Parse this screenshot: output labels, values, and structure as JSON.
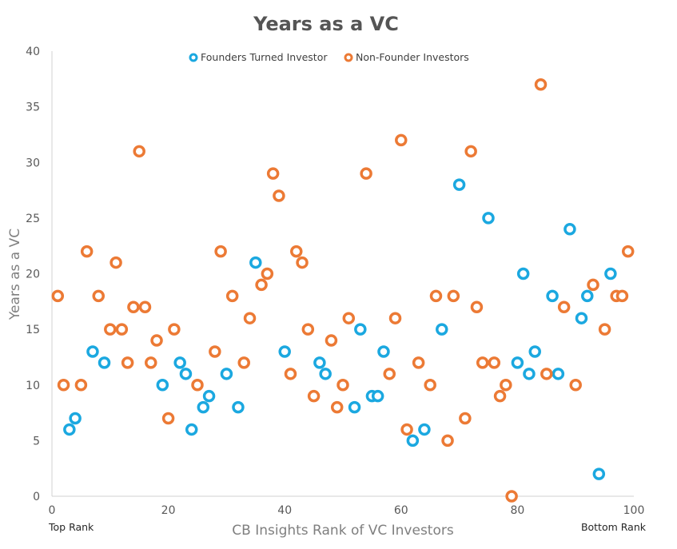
{
  "chart_data": {
    "type": "scatter",
    "title": "Years as a VC",
    "xlabel": "CB Insights Rank of VC Investors",
    "ylabel": "Years as a VC",
    "xlim": [
      0,
      100
    ],
    "ylim": [
      0,
      40
    ],
    "xticks": [
      0,
      20,
      40,
      60,
      80,
      100
    ],
    "yticks": [
      0,
      5,
      10,
      15,
      20,
      25,
      30,
      35,
      40
    ],
    "grid": false,
    "legend_position": "top",
    "x_start_note": "Top Rank",
    "x_end_note": "Bottom Rank",
    "series": [
      {
        "name": "Founders Turned Investor",
        "color": "#1ba8e0",
        "points": [
          [
            3,
            6
          ],
          [
            4,
            7
          ],
          [
            7,
            13
          ],
          [
            9,
            12
          ],
          [
            19,
            10
          ],
          [
            22,
            12
          ],
          [
            23,
            11
          ],
          [
            24,
            6
          ],
          [
            26,
            8
          ],
          [
            27,
            9
          ],
          [
            30,
            11
          ],
          [
            32,
            8
          ],
          [
            35,
            21
          ],
          [
            40,
            13
          ],
          [
            46,
            12
          ],
          [
            47,
            11
          ],
          [
            52,
            8
          ],
          [
            53,
            15
          ],
          [
            55,
            9
          ],
          [
            56,
            9
          ],
          [
            57,
            13
          ],
          [
            62,
            5
          ],
          [
            64,
            6
          ],
          [
            67,
            15
          ],
          [
            70,
            28
          ],
          [
            75,
            25
          ],
          [
            80,
            12
          ],
          [
            81,
            20
          ],
          [
            82,
            11
          ],
          [
            83,
            13
          ],
          [
            86,
            18
          ],
          [
            87,
            11
          ],
          [
            89,
            24
          ],
          [
            91,
            16
          ],
          [
            92,
            18
          ],
          [
            94,
            2
          ],
          [
            96,
            20
          ]
        ]
      },
      {
        "name": "Non-Founder Investors",
        "color": "#ec7a35",
        "points": [
          [
            1,
            18
          ],
          [
            2,
            10
          ],
          [
            5,
            10
          ],
          [
            6,
            22
          ],
          [
            8,
            18
          ],
          [
            10,
            15
          ],
          [
            11,
            21
          ],
          [
            12,
            15
          ],
          [
            13,
            12
          ],
          [
            14,
            17
          ],
          [
            15,
            31
          ],
          [
            16,
            17
          ],
          [
            17,
            12
          ],
          [
            18,
            14
          ],
          [
            20,
            7
          ],
          [
            21,
            15
          ],
          [
            25,
            10
          ],
          [
            28,
            13
          ],
          [
            29,
            22
          ],
          [
            31,
            18
          ],
          [
            33,
            12
          ],
          [
            34,
            16
          ],
          [
            36,
            19
          ],
          [
            37,
            20
          ],
          [
            38,
            29
          ],
          [
            39,
            27
          ],
          [
            41,
            11
          ],
          [
            42,
            22
          ],
          [
            43,
            21
          ],
          [
            44,
            15
          ],
          [
            45,
            9
          ],
          [
            48,
            14
          ],
          [
            49,
            8
          ],
          [
            50,
            10
          ],
          [
            51,
            16
          ],
          [
            54,
            29
          ],
          [
            58,
            11
          ],
          [
            59,
            16
          ],
          [
            60,
            32
          ],
          [
            61,
            6
          ],
          [
            63,
            12
          ],
          [
            65,
            10
          ],
          [
            66,
            18
          ],
          [
            68,
            5
          ],
          [
            69,
            18
          ],
          [
            71,
            7
          ],
          [
            72,
            31
          ],
          [
            73,
            17
          ],
          [
            74,
            12
          ],
          [
            76,
            12
          ],
          [
            77,
            9
          ],
          [
            78,
            10
          ],
          [
            79,
            0
          ],
          [
            84,
            37
          ],
          [
            85,
            11
          ],
          [
            88,
            17
          ],
          [
            90,
            10
          ],
          [
            93,
            19
          ],
          [
            95,
            15
          ],
          [
            97,
            18
          ],
          [
            98,
            18
          ],
          [
            99,
            22
          ]
        ]
      }
    ]
  }
}
